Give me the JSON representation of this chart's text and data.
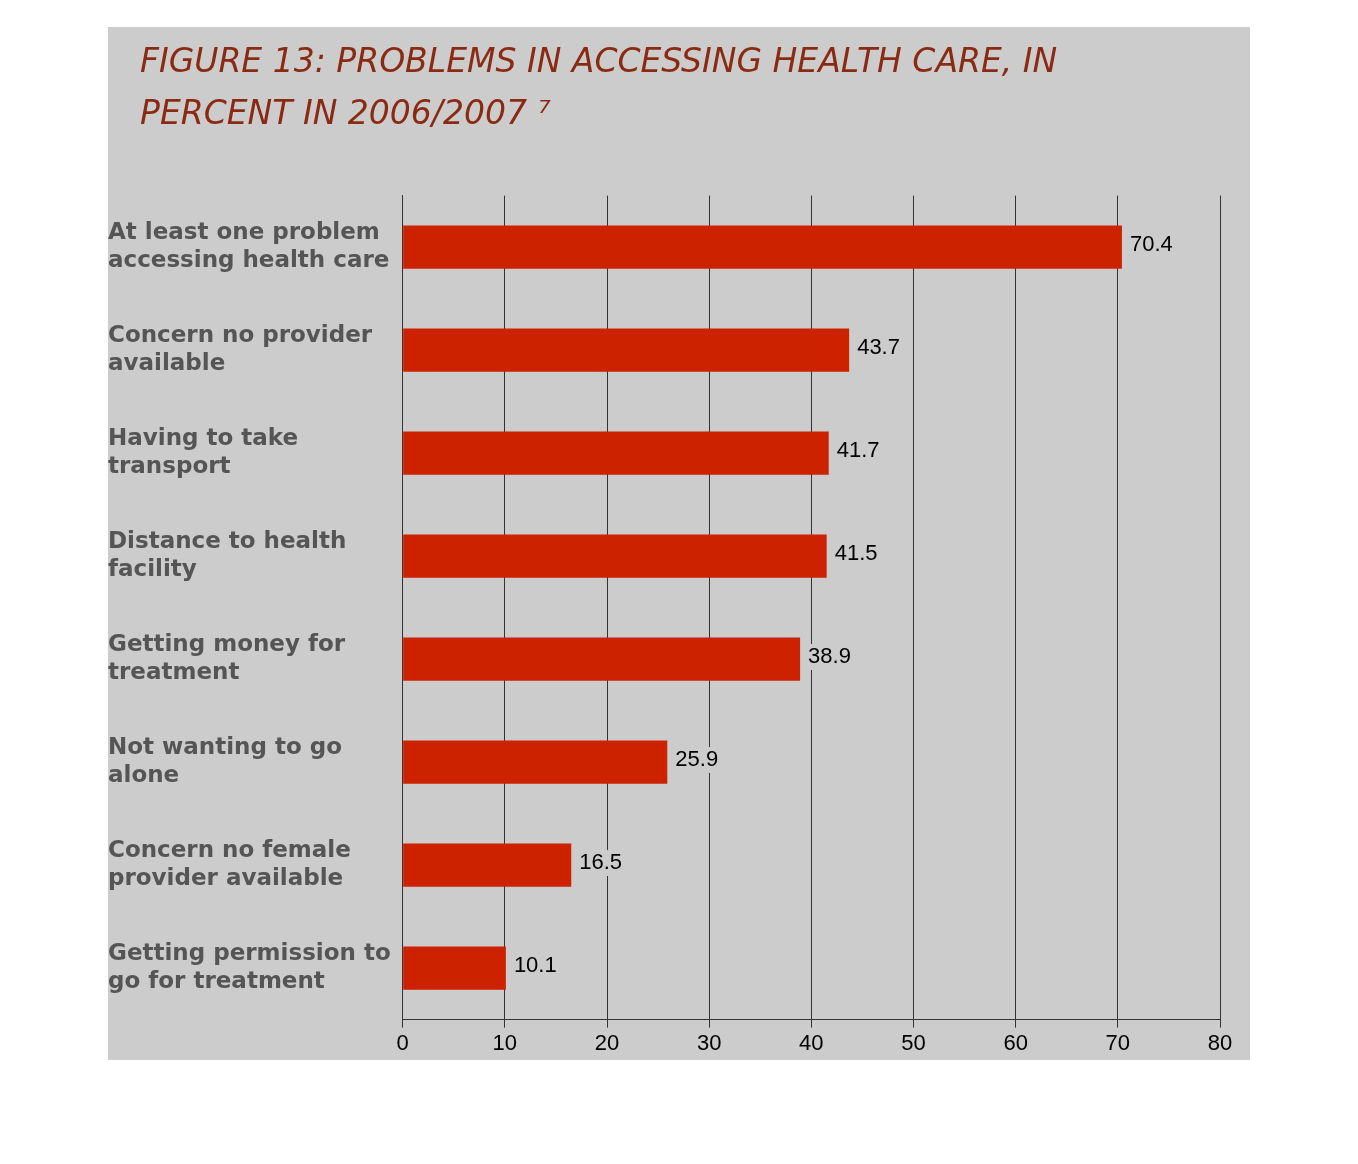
{
  "chart_data": {
    "type": "bar",
    "orientation": "horizontal",
    "title": "FIGURE 13:  PROBLEMS IN ACCESSING HEALTH CARE, IN PERCENT  IN 2006/2007 ⁷",
    "categories": [
      "At least one problem accessing health care",
      "Concern no provider available",
      "Having to take transport",
      "Distance to health facility",
      "Getting money for treatment",
      "Not wanting to go alone",
      "Concern no female provider available",
      "Getting permission to go for treatment"
    ],
    "values": [
      70.4,
      43.7,
      41.7,
      41.5,
      38.9,
      25.9,
      16.5,
      10.1
    ],
    "color": "#cc2200",
    "xlim": [
      0,
      80
    ],
    "xticks": [
      0,
      10,
      20,
      30,
      40,
      50,
      60,
      70,
      80
    ],
    "grid": "x",
    "data_labels": true,
    "legend": false
  }
}
